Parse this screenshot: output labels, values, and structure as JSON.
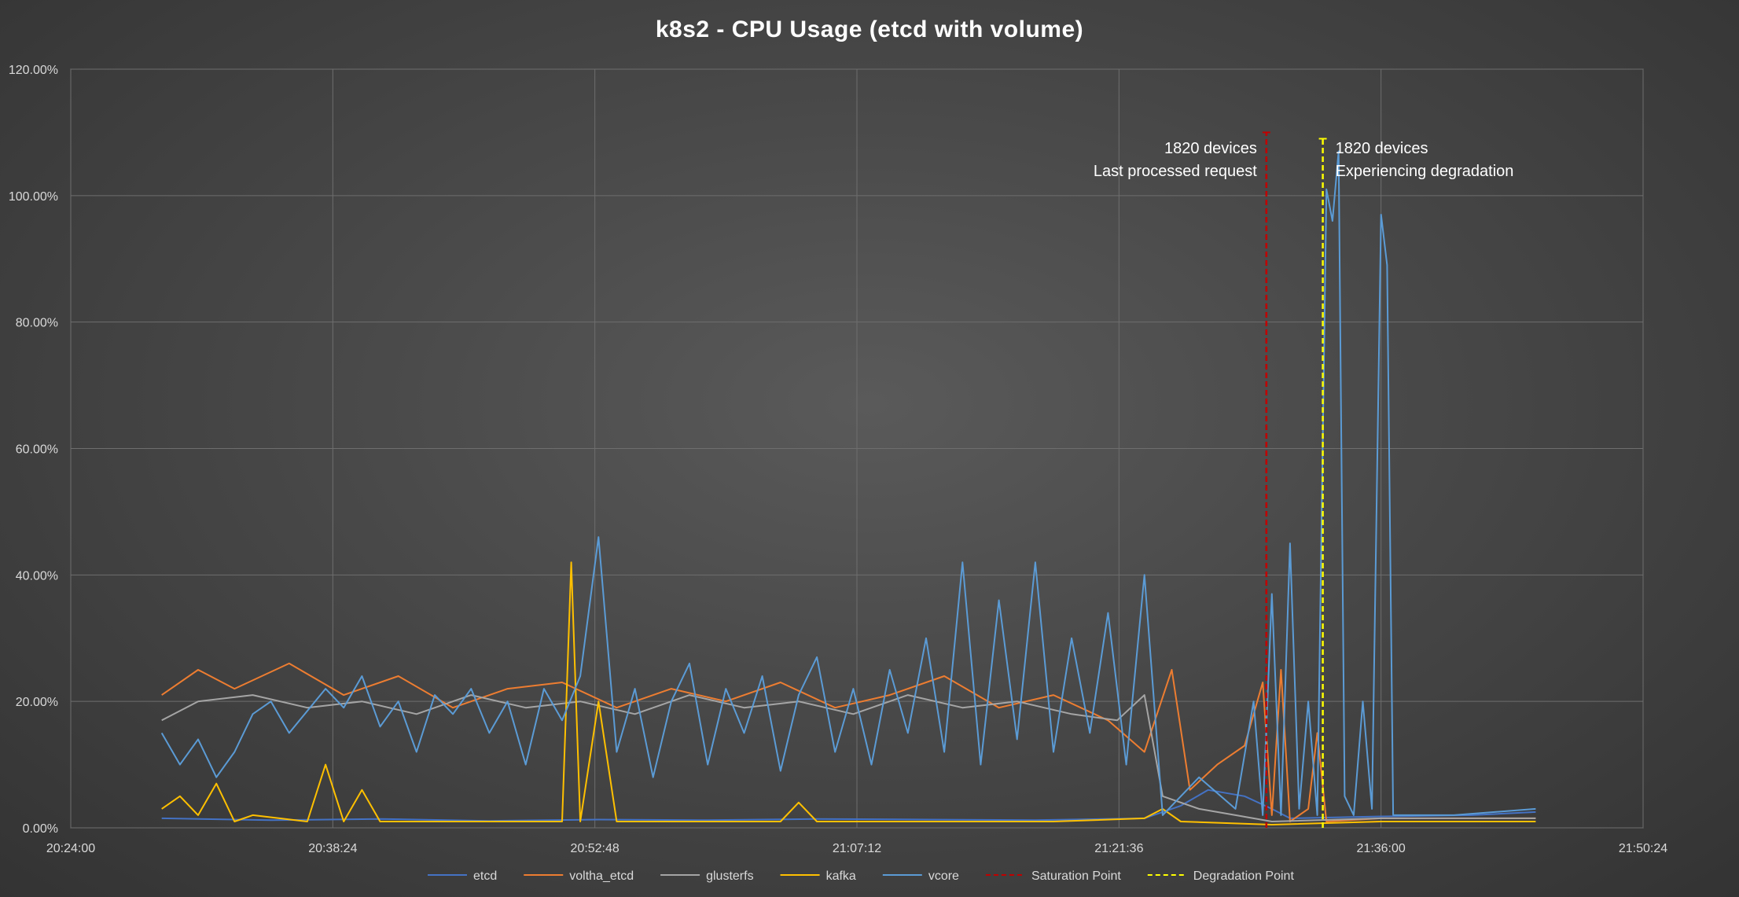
{
  "chart_data": {
    "type": "line",
    "title": "k8s2 - CPU Usage (etcd with volume)",
    "xlabel": "",
    "ylabel": "",
    "x_ticks": [
      "20:24:00",
      "20:38:24",
      "20:52:48",
      "21:07:12",
      "21:21:36",
      "21:36:00",
      "21:50:24"
    ],
    "y_ticks": [
      "0.00%",
      "20.00%",
      "40.00%",
      "60.00%",
      "80.00%",
      "100.00%",
      "120.00%"
    ],
    "xlim": [
      "20:24:00",
      "21:50:24"
    ],
    "ylim": [
      0,
      120
    ],
    "grid": true,
    "legend_position": "bottom",
    "series": [
      {
        "name": "etcd",
        "color": "#4472c4",
        "points": [
          [
            "20:29:00",
            1.5
          ],
          [
            "20:35:00",
            1.2
          ],
          [
            "20:41:00",
            1.4
          ],
          [
            "20:47:00",
            1.1
          ],
          [
            "20:53:00",
            1.3
          ],
          [
            "20:59:00",
            1.2
          ],
          [
            "21:05:00",
            1.4
          ],
          [
            "21:11:00",
            1.3
          ],
          [
            "21:17:00",
            1.2
          ],
          [
            "21:23:00",
            1.5
          ],
          [
            "21:25:00",
            3.5
          ],
          [
            "21:26:30",
            6.0
          ],
          [
            "21:28:30",
            5.0
          ],
          [
            "21:30:00",
            3.0
          ],
          [
            "21:31:00",
            1.5
          ],
          [
            "21:36:00",
            1.8
          ],
          [
            "21:41:00",
            2.0
          ],
          [
            "21:44:30",
            2.5
          ]
        ]
      },
      {
        "name": "voltha_etcd",
        "color": "#ed7d31",
        "points": [
          [
            "20:29:00",
            21
          ],
          [
            "20:31:00",
            25
          ],
          [
            "20:33:00",
            22
          ],
          [
            "20:36:00",
            26
          ],
          [
            "20:39:00",
            21
          ],
          [
            "20:42:00",
            24
          ],
          [
            "20:45:00",
            19
          ],
          [
            "20:48:00",
            22
          ],
          [
            "20:51:00",
            23
          ],
          [
            "20:54:00",
            19
          ],
          [
            "20:57:00",
            22
          ],
          [
            "21:00:00",
            20
          ],
          [
            "21:03:00",
            23
          ],
          [
            "21:06:00",
            19
          ],
          [
            "21:09:00",
            21
          ],
          [
            "21:12:00",
            24
          ],
          [
            "21:15:00",
            19
          ],
          [
            "21:18:00",
            21
          ],
          [
            "21:21:00",
            17
          ],
          [
            "21:23:00",
            12
          ],
          [
            "21:24:30",
            25
          ],
          [
            "21:25:30",
            6
          ],
          [
            "21:27:00",
            10
          ],
          [
            "21:28:30",
            13
          ],
          [
            "21:29:30",
            23
          ],
          [
            "21:30:00",
            2
          ],
          [
            "21:30:30",
            25
          ],
          [
            "21:31:00",
            1
          ],
          [
            "21:32:00",
            3
          ],
          [
            "21:32:30",
            15
          ],
          [
            "21:33:00",
            1
          ],
          [
            "21:36:00",
            1.5
          ],
          [
            "21:44:30",
            1.5
          ]
        ]
      },
      {
        "name": "glusterfs",
        "color": "#a5a5a5",
        "points": [
          [
            "20:29:00",
            17
          ],
          [
            "20:31:00",
            20
          ],
          [
            "20:34:00",
            21
          ],
          [
            "20:37:00",
            19
          ],
          [
            "20:40:00",
            20
          ],
          [
            "20:43:00",
            18
          ],
          [
            "20:46:00",
            21
          ],
          [
            "20:49:00",
            19
          ],
          [
            "20:52:00",
            20
          ],
          [
            "20:55:00",
            18
          ],
          [
            "20:58:00",
            21
          ],
          [
            "21:01:00",
            19
          ],
          [
            "21:04:00",
            20
          ],
          [
            "21:07:00",
            18
          ],
          [
            "21:10:00",
            21
          ],
          [
            "21:13:00",
            19
          ],
          [
            "21:16:00",
            20
          ],
          [
            "21:19:00",
            18
          ],
          [
            "21:21:30",
            17
          ],
          [
            "21:23:00",
            21
          ],
          [
            "21:24:00",
            5
          ],
          [
            "21:26:00",
            3
          ],
          [
            "21:28:00",
            2
          ],
          [
            "21:30:00",
            1
          ],
          [
            "21:36:00",
            1.5
          ],
          [
            "21:44:30",
            1.5
          ]
        ]
      },
      {
        "name": "kafka",
        "color": "#ffc000",
        "points": [
          [
            "20:29:00",
            3
          ],
          [
            "20:30:00",
            5
          ],
          [
            "20:31:00",
            2
          ],
          [
            "20:32:00",
            7
          ],
          [
            "20:33:00",
            1
          ],
          [
            "20:34:00",
            2
          ],
          [
            "20:37:00",
            1
          ],
          [
            "20:38:00",
            10
          ],
          [
            "20:39:00",
            1
          ],
          [
            "20:40:00",
            6
          ],
          [
            "20:41:00",
            1
          ],
          [
            "20:47:00",
            1
          ],
          [
            "20:51:00",
            1
          ],
          [
            "20:51:30",
            42
          ],
          [
            "20:52:00",
            1
          ],
          [
            "20:53:00",
            20
          ],
          [
            "20:54:00",
            1
          ],
          [
            "21:00:00",
            1
          ],
          [
            "21:03:00",
            1
          ],
          [
            "21:04:00",
            4
          ],
          [
            "21:05:00",
            1
          ],
          [
            "21:12:00",
            1
          ],
          [
            "21:18:00",
            1
          ],
          [
            "21:23:00",
            1.5
          ],
          [
            "21:24:00",
            3
          ],
          [
            "21:25:00",
            1
          ],
          [
            "21:30:00",
            0.5
          ],
          [
            "21:36:00",
            1
          ],
          [
            "21:44:30",
            1
          ]
        ]
      },
      {
        "name": "vcore",
        "color": "#5b9bd5",
        "points": [
          [
            "20:29:00",
            15
          ],
          [
            "20:30:00",
            10
          ],
          [
            "20:31:00",
            14
          ],
          [
            "20:32:00",
            8
          ],
          [
            "20:33:00",
            12
          ],
          [
            "20:34:00",
            18
          ],
          [
            "20:35:00",
            20
          ],
          [
            "20:36:00",
            15
          ],
          [
            "20:38:00",
            22
          ],
          [
            "20:39:00",
            19
          ],
          [
            "20:40:00",
            24
          ],
          [
            "20:41:00",
            16
          ],
          [
            "20:42:00",
            20
          ],
          [
            "20:43:00",
            12
          ],
          [
            "20:44:00",
            21
          ],
          [
            "20:45:00",
            18
          ],
          [
            "20:46:00",
            22
          ],
          [
            "20:47:00",
            15
          ],
          [
            "20:48:00",
            20
          ],
          [
            "20:49:00",
            10
          ],
          [
            "20:50:00",
            22
          ],
          [
            "20:51:00",
            17
          ],
          [
            "20:52:00",
            24
          ],
          [
            "20:53:00",
            46
          ],
          [
            "20:54:00",
            12
          ],
          [
            "20:55:00",
            22
          ],
          [
            "20:56:00",
            8
          ],
          [
            "20:57:00",
            20
          ],
          [
            "20:58:00",
            26
          ],
          [
            "20:59:00",
            10
          ],
          [
            "21:00:00",
            22
          ],
          [
            "21:01:00",
            15
          ],
          [
            "21:02:00",
            24
          ],
          [
            "21:03:00",
            9
          ],
          [
            "21:04:00",
            21
          ],
          [
            "21:05:00",
            27
          ],
          [
            "21:06:00",
            12
          ],
          [
            "21:07:00",
            22
          ],
          [
            "21:08:00",
            10
          ],
          [
            "21:09:00",
            25
          ],
          [
            "21:10:00",
            15
          ],
          [
            "21:11:00",
            30
          ],
          [
            "21:12:00",
            12
          ],
          [
            "21:13:00",
            42
          ],
          [
            "21:14:00",
            10
          ],
          [
            "21:15:00",
            36
          ],
          [
            "21:16:00",
            14
          ],
          [
            "21:17:00",
            42
          ],
          [
            "21:18:00",
            12
          ],
          [
            "21:19:00",
            30
          ],
          [
            "21:20:00",
            15
          ],
          [
            "21:21:00",
            34
          ],
          [
            "21:22:00",
            10
          ],
          [
            "21:23:00",
            40
          ],
          [
            "21:24:00",
            2
          ],
          [
            "21:26:00",
            8
          ],
          [
            "21:28:00",
            3
          ],
          [
            "21:29:00",
            20
          ],
          [
            "21:29:30",
            2
          ],
          [
            "21:30:00",
            37
          ],
          [
            "21:30:30",
            2
          ],
          [
            "21:31:00",
            45
          ],
          [
            "21:31:30",
            3
          ],
          [
            "21:32:00",
            20
          ],
          [
            "21:32:30",
            2
          ],
          [
            "21:33:00",
            101
          ],
          [
            "21:33:20",
            96
          ],
          [
            "21:33:40",
            107
          ],
          [
            "21:34:00",
            5
          ],
          [
            "21:34:30",
            2
          ],
          [
            "21:35:00",
            20
          ],
          [
            "21:35:30",
            3
          ],
          [
            "21:36:00",
            97
          ],
          [
            "21:36:20",
            89
          ],
          [
            "21:36:40",
            2
          ],
          [
            "21:40:00",
            2
          ],
          [
            "21:44:30",
            3
          ]
        ]
      }
    ],
    "reference_lines": [
      {
        "name": "Saturation Point",
        "color": "#c00000",
        "x": "21:29:42",
        "ylim": [
          0,
          110
        ],
        "label_lines": [
          "1820 devices",
          "Last processed request"
        ],
        "label_side": "left"
      },
      {
        "name": "Degradation Point",
        "color": "#ffff00",
        "x": "21:32:48",
        "ylim": [
          0,
          109
        ],
        "label_lines": [
          "1820 devices",
          "Experiencing degradation"
        ],
        "label_side": "right"
      }
    ]
  }
}
